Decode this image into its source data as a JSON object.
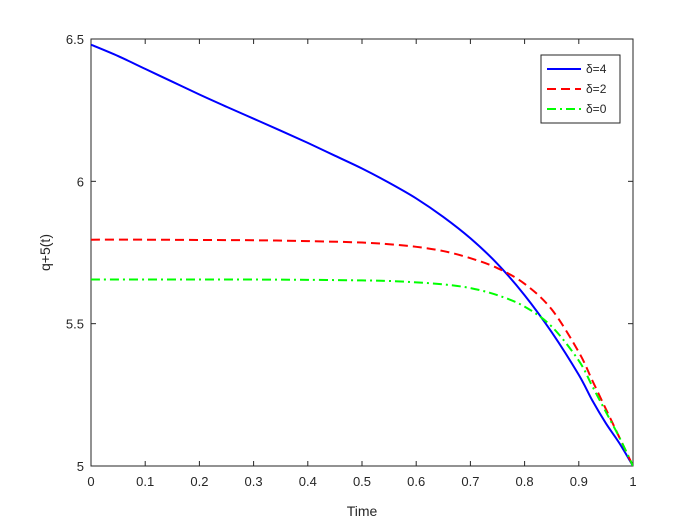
{
  "chart_data": {
    "type": "line",
    "xlabel": "Time",
    "ylabel": "q+5(t)",
    "xlim": [
      0,
      1
    ],
    "ylim": [
      5,
      6.5
    ],
    "xticks": [
      "0",
      "0.1",
      "0.2",
      "0.3",
      "0.4",
      "0.5",
      "0.6",
      "0.7",
      "0.8",
      "0.9",
      "1"
    ],
    "yticks": [
      "5",
      "5.5",
      "6",
      "6.5"
    ],
    "grid": false,
    "legend_position": "top-right",
    "series": [
      {
        "name": "δ=4",
        "color": "#0000ff",
        "style": "solid",
        "x": [
          0,
          0.05,
          0.1,
          0.15,
          0.2,
          0.25,
          0.3,
          0.35,
          0.4,
          0.45,
          0.5,
          0.55,
          0.6,
          0.65,
          0.7,
          0.75,
          0.8,
          0.85,
          0.9,
          0.925,
          0.95,
          0.975,
          1.0
        ],
        "y": [
          6.48,
          6.44,
          6.395,
          6.35,
          6.305,
          6.262,
          6.22,
          6.178,
          6.135,
          6.09,
          6.045,
          5.995,
          5.94,
          5.875,
          5.8,
          5.71,
          5.6,
          5.47,
          5.32,
          5.23,
          5.15,
          5.08,
          5.0
        ]
      },
      {
        "name": "δ=2",
        "color": "#ff0000",
        "style": "dashed",
        "x": [
          0,
          0.1,
          0.2,
          0.3,
          0.4,
          0.5,
          0.55,
          0.6,
          0.65,
          0.7,
          0.75,
          0.8,
          0.85,
          0.9,
          0.925,
          0.95,
          0.975,
          1.0
        ],
        "y": [
          5.795,
          5.795,
          5.794,
          5.793,
          5.79,
          5.785,
          5.779,
          5.77,
          5.755,
          5.73,
          5.695,
          5.64,
          5.55,
          5.4,
          5.3,
          5.2,
          5.1,
          5.0
        ]
      },
      {
        "name": "δ=0",
        "color": "#00ff00",
        "style": "dashdot",
        "x": [
          0,
          0.1,
          0.2,
          0.3,
          0.4,
          0.5,
          0.55,
          0.6,
          0.65,
          0.7,
          0.75,
          0.8,
          0.85,
          0.9,
          0.925,
          0.95,
          0.975,
          1.0
        ],
        "y": [
          5.655,
          5.655,
          5.655,
          5.655,
          5.654,
          5.652,
          5.65,
          5.645,
          5.638,
          5.625,
          5.6,
          5.56,
          5.49,
          5.37,
          5.28,
          5.19,
          5.1,
          5.0
        ]
      }
    ]
  }
}
